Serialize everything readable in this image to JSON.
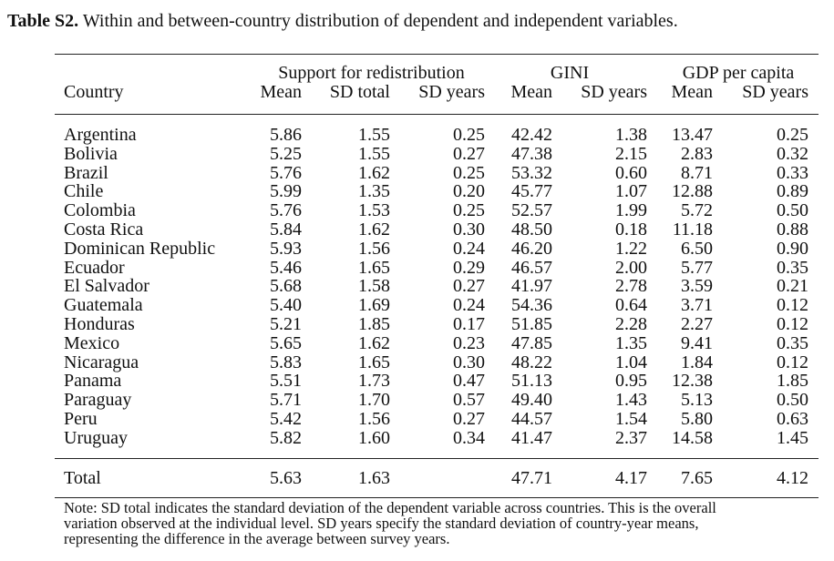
{
  "caption": {
    "label": "Table S2.",
    "text": "Within and between-country distribution of dependent and independent variables."
  },
  "headers": {
    "group_support": "Support for redistribution",
    "group_gini": "GINI",
    "group_gdp": "GDP per capita",
    "country": "Country",
    "cols": [
      "Mean",
      "SD total",
      "SD years",
      "Mean",
      "SD years",
      "Mean",
      "SD years"
    ]
  },
  "rows": [
    {
      "country": "Argentina",
      "values": [
        "5.86",
        "1.55",
        "0.25",
        "42.42",
        "1.38",
        "13.47",
        "0.25"
      ]
    },
    {
      "country": "Bolivia",
      "values": [
        "5.25",
        "1.55",
        "0.27",
        "47.38",
        "2.15",
        "2.83",
        "0.32"
      ]
    },
    {
      "country": "Brazil",
      "values": [
        "5.76",
        "1.62",
        "0.25",
        "53.32",
        "0.60",
        "8.71",
        "0.33"
      ]
    },
    {
      "country": "Chile",
      "values": [
        "5.99",
        "1.35",
        "0.20",
        "45.77",
        "1.07",
        "12.88",
        "0.89"
      ]
    },
    {
      "country": "Colombia",
      "values": [
        "5.76",
        "1.53",
        "0.25",
        "52.57",
        "1.99",
        "5.72",
        "0.50"
      ]
    },
    {
      "country": "Costa Rica",
      "values": [
        "5.84",
        "1.62",
        "0.30",
        "48.50",
        "0.18",
        "11.18",
        "0.88"
      ]
    },
    {
      "country": "Dominican Republic",
      "values": [
        "5.93",
        "1.56",
        "0.24",
        "46.20",
        "1.22",
        "6.50",
        "0.90"
      ]
    },
    {
      "country": "Ecuador",
      "values": [
        "5.46",
        "1.65",
        "0.29",
        "46.57",
        "2.00",
        "5.77",
        "0.35"
      ]
    },
    {
      "country": "El Salvador",
      "values": [
        "5.68",
        "1.58",
        "0.27",
        "41.97",
        "2.78",
        "3.59",
        "0.21"
      ]
    },
    {
      "country": "Guatemala",
      "values": [
        "5.40",
        "1.69",
        "0.24",
        "54.36",
        "0.64",
        "3.71",
        "0.12"
      ]
    },
    {
      "country": "Honduras",
      "values": [
        "5.21",
        "1.85",
        "0.17",
        "51.85",
        "2.28",
        "2.27",
        "0.12"
      ]
    },
    {
      "country": "Mexico",
      "values": [
        "5.65",
        "1.62",
        "0.23",
        "47.85",
        "1.35",
        "9.41",
        "0.35"
      ]
    },
    {
      "country": "Nicaragua",
      "values": [
        "5.83",
        "1.65",
        "0.30",
        "48.22",
        "1.04",
        "1.84",
        "0.12"
      ]
    },
    {
      "country": "Panama",
      "values": [
        "5.51",
        "1.73",
        "0.47",
        "51.13",
        "0.95",
        "12.38",
        "1.85"
      ]
    },
    {
      "country": "Paraguay",
      "values": [
        "5.71",
        "1.70",
        "0.57",
        "49.40",
        "1.43",
        "5.13",
        "0.50"
      ]
    },
    {
      "country": "Peru",
      "values": [
        "5.42",
        "1.56",
        "0.27",
        "44.57",
        "1.54",
        "5.80",
        "0.63"
      ]
    },
    {
      "country": "Uruguay",
      "values": [
        "5.82",
        "1.60",
        "0.34",
        "41.47",
        "2.37",
        "14.58",
        "1.45"
      ]
    }
  ],
  "total": {
    "country": "Total",
    "values": [
      "5.63",
      "1.63",
      "",
      "47.71",
      "4.17",
      "7.65",
      "4.12"
    ]
  },
  "note": [
    "Note: SD total indicates the standard deviation of the dependent variable across countries. This is the overall",
    "variation observed at the individual level. SD years specify the standard deviation of country-year means,",
    "representing the difference in the average between survey years."
  ]
}
